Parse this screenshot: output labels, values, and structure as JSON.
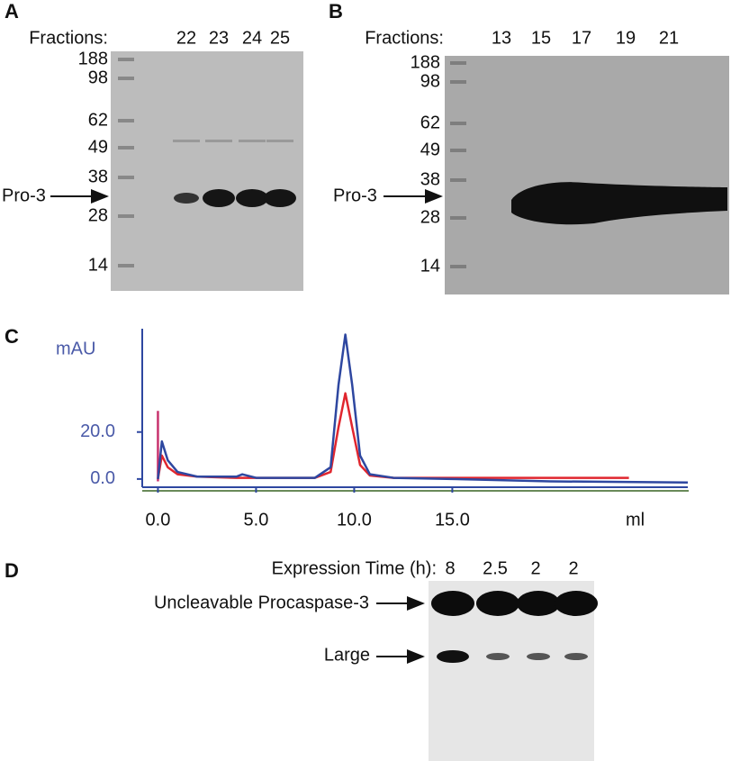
{
  "panel_a": {
    "letter": "A",
    "fractions_label": "Fractions:",
    "lanes": [
      "22",
      "23",
      "24",
      "25"
    ],
    "markers": [
      "188",
      "98",
      "62",
      "49",
      "38",
      "28",
      "14"
    ],
    "band_label": "Pro-3"
  },
  "panel_b": {
    "letter": "B",
    "fractions_label": "Fractions:",
    "lanes": [
      "13",
      "15",
      "17",
      "19",
      "21"
    ],
    "markers": [
      "188",
      "98",
      "62",
      "49",
      "38",
      "28",
      "14"
    ],
    "band_label": "Pro-3"
  },
  "chart_data": {
    "type": "line",
    "letter": "C",
    "y_label": "mAU",
    "x_label": "ml",
    "xlim": [
      -0.8,
      27
    ],
    "ylim": [
      -3.5,
      64
    ],
    "xticks": [
      {
        "value": 0,
        "label": "0.0"
      },
      {
        "value": 5,
        "label": "5.0"
      },
      {
        "value": 10,
        "label": "10.0"
      },
      {
        "value": 15,
        "label": "15.0"
      }
    ],
    "yticks": [
      {
        "value": 0,
        "label": "0.0"
      },
      {
        "value": 20,
        "label": "20.0"
      }
    ],
    "series": [
      {
        "color": "#c8336e",
        "x": [
          0,
          0
        ],
        "values": [
          -1,
          29
        ]
      },
      {
        "color": "#e0262e",
        "x": [
          0,
          0.2,
          0.5,
          1,
          2,
          4,
          8,
          8.8,
          9.2,
          9.55,
          9.9,
          10.3,
          10.8,
          12,
          15,
          20,
          24
        ],
        "values": [
          0,
          10,
          5,
          2,
          1,
          0.5,
          0.5,
          3,
          22,
          36.5,
          22,
          6,
          1.5,
          0.5,
          0.5,
          0.5,
          0.5
        ]
      },
      {
        "color": "#2e47a0",
        "x": [
          0,
          0.2,
          0.5,
          1,
          2,
          4,
          4.3,
          5,
          8,
          8.8,
          9.2,
          9.55,
          9.9,
          10.3,
          10.8,
          12,
          15,
          20,
          27
        ],
        "values": [
          0,
          16,
          8,
          3,
          1,
          1,
          2,
          0.5,
          0.5,
          5,
          40,
          61.5,
          40,
          10,
          2,
          0.5,
          0,
          -1,
          -1.5
        ]
      }
    ]
  },
  "panel_d": {
    "letter": "D",
    "time_label": "Expression Time (h):",
    "lanes": [
      "8",
      "2.5",
      "2",
      "2"
    ],
    "band_labels": [
      "Uncleavable Procaspase-3",
      "Large"
    ]
  }
}
